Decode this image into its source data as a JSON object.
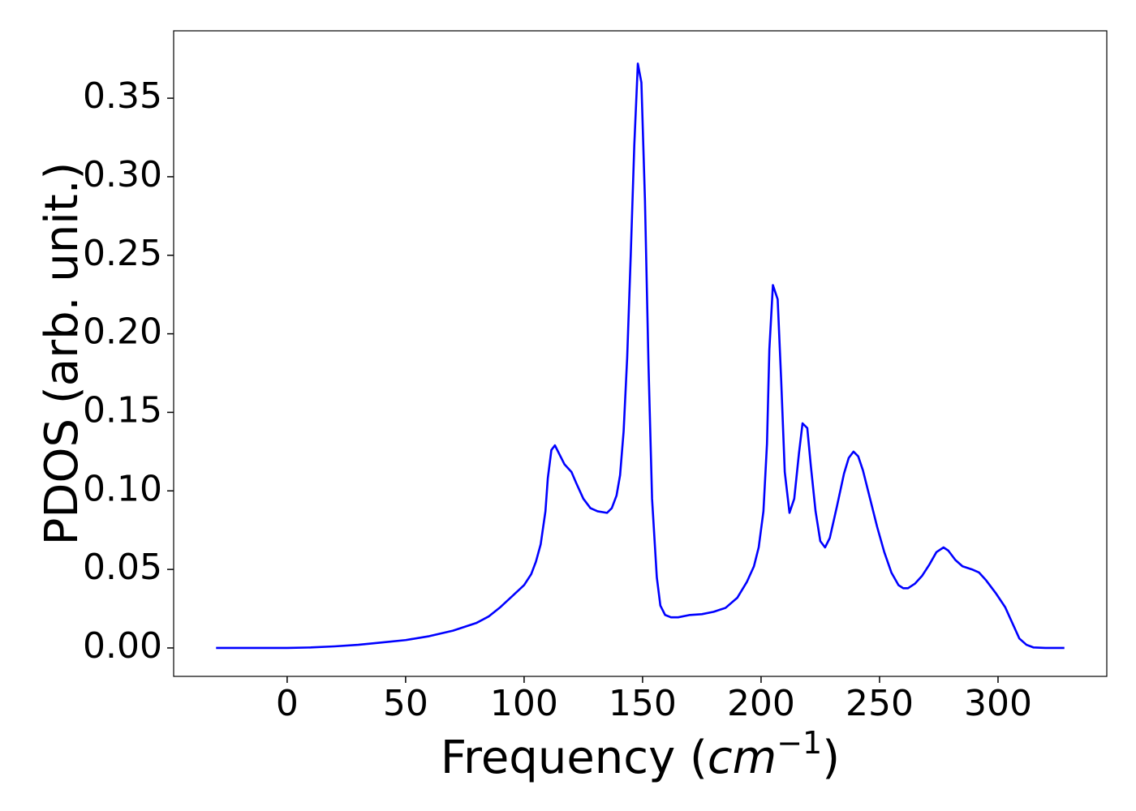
{
  "chart_data": {
    "type": "line",
    "ylabel": "PDOS (arb. unit.)",
    "xlabel_parts": [
      "Frequency (",
      "cm",
      "−1",
      ")"
    ],
    "xlim": [
      -47.9,
      345.9
    ],
    "ylim": [
      -0.0181,
      0.3929
    ],
    "xticks": [
      0,
      50,
      100,
      150,
      200,
      250,
      300
    ],
    "yticks": [
      {
        "value": 0,
        "label": "0.00"
      },
      {
        "value": 0.05,
        "label": "0.05"
      },
      {
        "value": 0.1,
        "label": "0.10"
      },
      {
        "value": 0.15,
        "label": "0.15"
      },
      {
        "value": 0.2,
        "label": "0.20"
      },
      {
        "value": 0.25,
        "label": "0.25"
      },
      {
        "value": 0.3,
        "label": "0.30"
      },
      {
        "value": 0.35,
        "label": "0.35"
      }
    ],
    "grid": false,
    "series": [
      {
        "color": "#0000ff",
        "x": [
          -30,
          0,
          10,
          20,
          30,
          40,
          50,
          60,
          70,
          80,
          85,
          90,
          95,
          100,
          103,
          105,
          107,
          109,
          110,
          111.5,
          113,
          117,
          120,
          122,
          125,
          128,
          131,
          135,
          137,
          139,
          140.5,
          142,
          143.5,
          145,
          146.5,
          148,
          149.5,
          151,
          152.5,
          154,
          156,
          157.5,
          159.5,
          162,
          165,
          170,
          175,
          180,
          185,
          190,
          194,
          197,
          199,
          201,
          202.5,
          203.5,
          205,
          207,
          208.5,
          210,
          212,
          214,
          216,
          217.5,
          219.5,
          221,
          223,
          225,
          227,
          229,
          232,
          235,
          237,
          239,
          241,
          243,
          246,
          249,
          252,
          255,
          258,
          260,
          262,
          265,
          268,
          271,
          274,
          277,
          279,
          282,
          285,
          289,
          292,
          295,
          299,
          303,
          306,
          309,
          312,
          315,
          320,
          328
        ],
        "values": [
          0,
          0,
          0.0003,
          0.001,
          0.002,
          0.0035,
          0.005,
          0.0075,
          0.011,
          0.016,
          0.02,
          0.026,
          0.033,
          0.04,
          0.047,
          0.055,
          0.066,
          0.087,
          0.108,
          0.126,
          0.129,
          0.117,
          0.112,
          0.105,
          0.095,
          0.089,
          0.087,
          0.086,
          0.089,
          0.097,
          0.11,
          0.138,
          0.185,
          0.25,
          0.32,
          0.372,
          0.36,
          0.285,
          0.18,
          0.095,
          0.045,
          0.027,
          0.021,
          0.0195,
          0.0195,
          0.021,
          0.0215,
          0.023,
          0.0255,
          0.032,
          0.042,
          0.052,
          0.064,
          0.087,
          0.13,
          0.19,
          0.231,
          0.222,
          0.17,
          0.112,
          0.086,
          0.095,
          0.124,
          0.143,
          0.14,
          0.116,
          0.087,
          0.068,
          0.064,
          0.07,
          0.09,
          0.111,
          0.121,
          0.125,
          0.122,
          0.113,
          0.095,
          0.077,
          0.061,
          0.048,
          0.04,
          0.038,
          0.038,
          0.041,
          0.046,
          0.053,
          0.061,
          0.064,
          0.062,
          0.056,
          0.052,
          0.05,
          0.048,
          0.043,
          0.035,
          0.026,
          0.016,
          0.006,
          0.002,
          0.0003,
          0,
          0
        ]
      }
    ]
  }
}
